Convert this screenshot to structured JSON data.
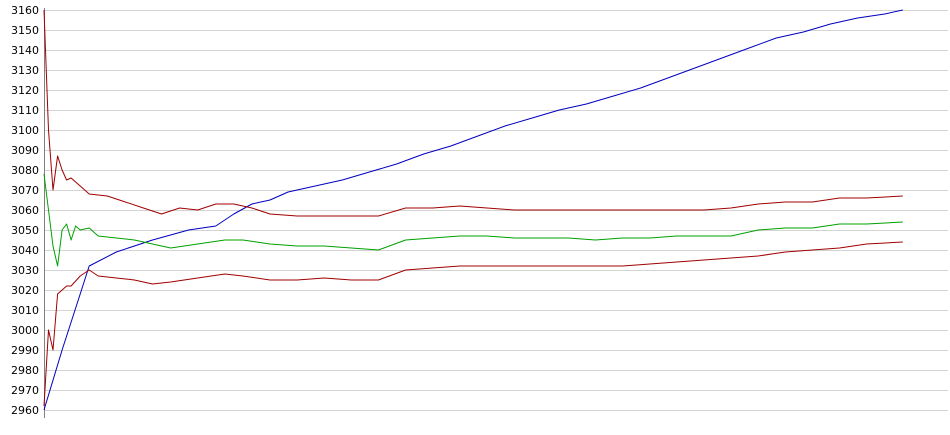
{
  "chart_data": {
    "type": "line",
    "title": "",
    "xlabel": "",
    "ylabel": "",
    "ylim": [
      2960,
      3160
    ],
    "xlim": [
      0,
      100
    ],
    "yticks": [
      3160,
      3150,
      3140,
      3130,
      3120,
      3110,
      3100,
      3090,
      3080,
      3070,
      3060,
      3050,
      3040,
      3030,
      3020,
      3010,
      3000,
      2990,
      2980,
      2970,
      2960
    ],
    "grid": "horizontal",
    "series": [
      {
        "color": "#0000c0",
        "points": [
          [
            0,
            2960
          ],
          [
            2,
            2990
          ],
          [
            4,
            3018
          ],
          [
            5,
            3032
          ],
          [
            8,
            3039
          ],
          [
            12,
            3045
          ],
          [
            16,
            3050
          ],
          [
            19,
            3052
          ],
          [
            21,
            3058
          ],
          [
            23,
            3063
          ],
          [
            25,
            3065
          ],
          [
            27,
            3069
          ],
          [
            30,
            3072
          ],
          [
            33,
            3075
          ],
          [
            36,
            3079
          ],
          [
            39,
            3083
          ],
          [
            42,
            3088
          ],
          [
            45,
            3092
          ],
          [
            48,
            3097
          ],
          [
            51,
            3102
          ],
          [
            54,
            3106
          ],
          [
            57,
            3110
          ],
          [
            60,
            3113
          ],
          [
            63,
            3117
          ],
          [
            66,
            3121
          ],
          [
            69,
            3126
          ],
          [
            72,
            3131
          ],
          [
            75,
            3136
          ],
          [
            78,
            3141
          ],
          [
            81,
            3146
          ],
          [
            84,
            3149
          ],
          [
            87,
            3153
          ],
          [
            90,
            3156
          ],
          [
            93,
            3158
          ],
          [
            95,
            3160
          ]
        ]
      },
      {
        "color": "#00a000",
        "points": [
          [
            0,
            3078
          ],
          [
            1,
            3042
          ],
          [
            1.5,
            3032
          ],
          [
            2,
            3050
          ],
          [
            2.5,
            3053
          ],
          [
            3,
            3045
          ],
          [
            3.5,
            3052
          ],
          [
            4,
            3050
          ],
          [
            5,
            3051
          ],
          [
            6,
            3047
          ],
          [
            8,
            3046
          ],
          [
            10,
            3045
          ],
          [
            12,
            3043
          ],
          [
            14,
            3041
          ],
          [
            17,
            3043
          ],
          [
            20,
            3045
          ],
          [
            22,
            3045
          ],
          [
            25,
            3043
          ],
          [
            28,
            3042
          ],
          [
            31,
            3042
          ],
          [
            34,
            3041
          ],
          [
            37,
            3040
          ],
          [
            40,
            3045
          ],
          [
            43,
            3046
          ],
          [
            46,
            3047
          ],
          [
            49,
            3047
          ],
          [
            52,
            3046
          ],
          [
            55,
            3046
          ],
          [
            58,
            3046
          ],
          [
            61,
            3045
          ],
          [
            64,
            3046
          ],
          [
            67,
            3046
          ],
          [
            70,
            3047
          ],
          [
            73,
            3047
          ],
          [
            76,
            3047
          ],
          [
            79,
            3050
          ],
          [
            82,
            3051
          ],
          [
            85,
            3051
          ],
          [
            88,
            3053
          ],
          [
            91,
            3053
          ],
          [
            95,
            3054
          ]
        ]
      },
      {
        "color": "#a00000",
        "points": [
          [
            0,
            3160
          ],
          [
            0.5,
            3100
          ],
          [
            1,
            3070
          ],
          [
            1.5,
            3087
          ],
          [
            2,
            3080
          ],
          [
            2.5,
            3075
          ],
          [
            3,
            3076
          ],
          [
            4,
            3072
          ],
          [
            5,
            3068
          ],
          [
            7,
            3067
          ],
          [
            9,
            3064
          ],
          [
            11,
            3061
          ],
          [
            13,
            3058
          ],
          [
            15,
            3061
          ],
          [
            17,
            3060
          ],
          [
            19,
            3063
          ],
          [
            21,
            3063
          ],
          [
            23,
            3061
          ],
          [
            25,
            3058
          ],
          [
            28,
            3057
          ],
          [
            31,
            3057
          ],
          [
            34,
            3057
          ],
          [
            37,
            3057
          ],
          [
            40,
            3061
          ],
          [
            43,
            3061
          ],
          [
            46,
            3062
          ],
          [
            49,
            3061
          ],
          [
            52,
            3060
          ],
          [
            55,
            3060
          ],
          [
            58,
            3060
          ],
          [
            61,
            3060
          ],
          [
            64,
            3060
          ],
          [
            67,
            3060
          ],
          [
            70,
            3060
          ],
          [
            73,
            3060
          ],
          [
            76,
            3061
          ],
          [
            79,
            3063
          ],
          [
            82,
            3064
          ],
          [
            85,
            3064
          ],
          [
            88,
            3066
          ],
          [
            91,
            3066
          ],
          [
            95,
            3067
          ]
        ]
      },
      {
        "color": "#a00000",
        "points": [
          [
            0,
            2962
          ],
          [
            0.5,
            3000
          ],
          [
            1,
            2990
          ],
          [
            1.5,
            3018
          ],
          [
            2,
            3020
          ],
          [
            2.5,
            3022
          ],
          [
            3,
            3022
          ],
          [
            4,
            3027
          ],
          [
            5,
            3030
          ],
          [
            6,
            3027
          ],
          [
            8,
            3026
          ],
          [
            10,
            3025
          ],
          [
            12,
            3023
          ],
          [
            14,
            3024
          ],
          [
            17,
            3026
          ],
          [
            20,
            3028
          ],
          [
            22,
            3027
          ],
          [
            25,
            3025
          ],
          [
            28,
            3025
          ],
          [
            31,
            3026
          ],
          [
            34,
            3025
          ],
          [
            37,
            3025
          ],
          [
            40,
            3030
          ],
          [
            43,
            3031
          ],
          [
            46,
            3032
          ],
          [
            49,
            3032
          ],
          [
            52,
            3032
          ],
          [
            55,
            3032
          ],
          [
            58,
            3032
          ],
          [
            61,
            3032
          ],
          [
            64,
            3032
          ],
          [
            67,
            3033
          ],
          [
            70,
            3034
          ],
          [
            73,
            3035
          ],
          [
            76,
            3036
          ],
          [
            79,
            3037
          ],
          [
            82,
            3039
          ],
          [
            85,
            3040
          ],
          [
            88,
            3041
          ],
          [
            91,
            3043
          ],
          [
            95,
            3044
          ]
        ]
      }
    ]
  }
}
